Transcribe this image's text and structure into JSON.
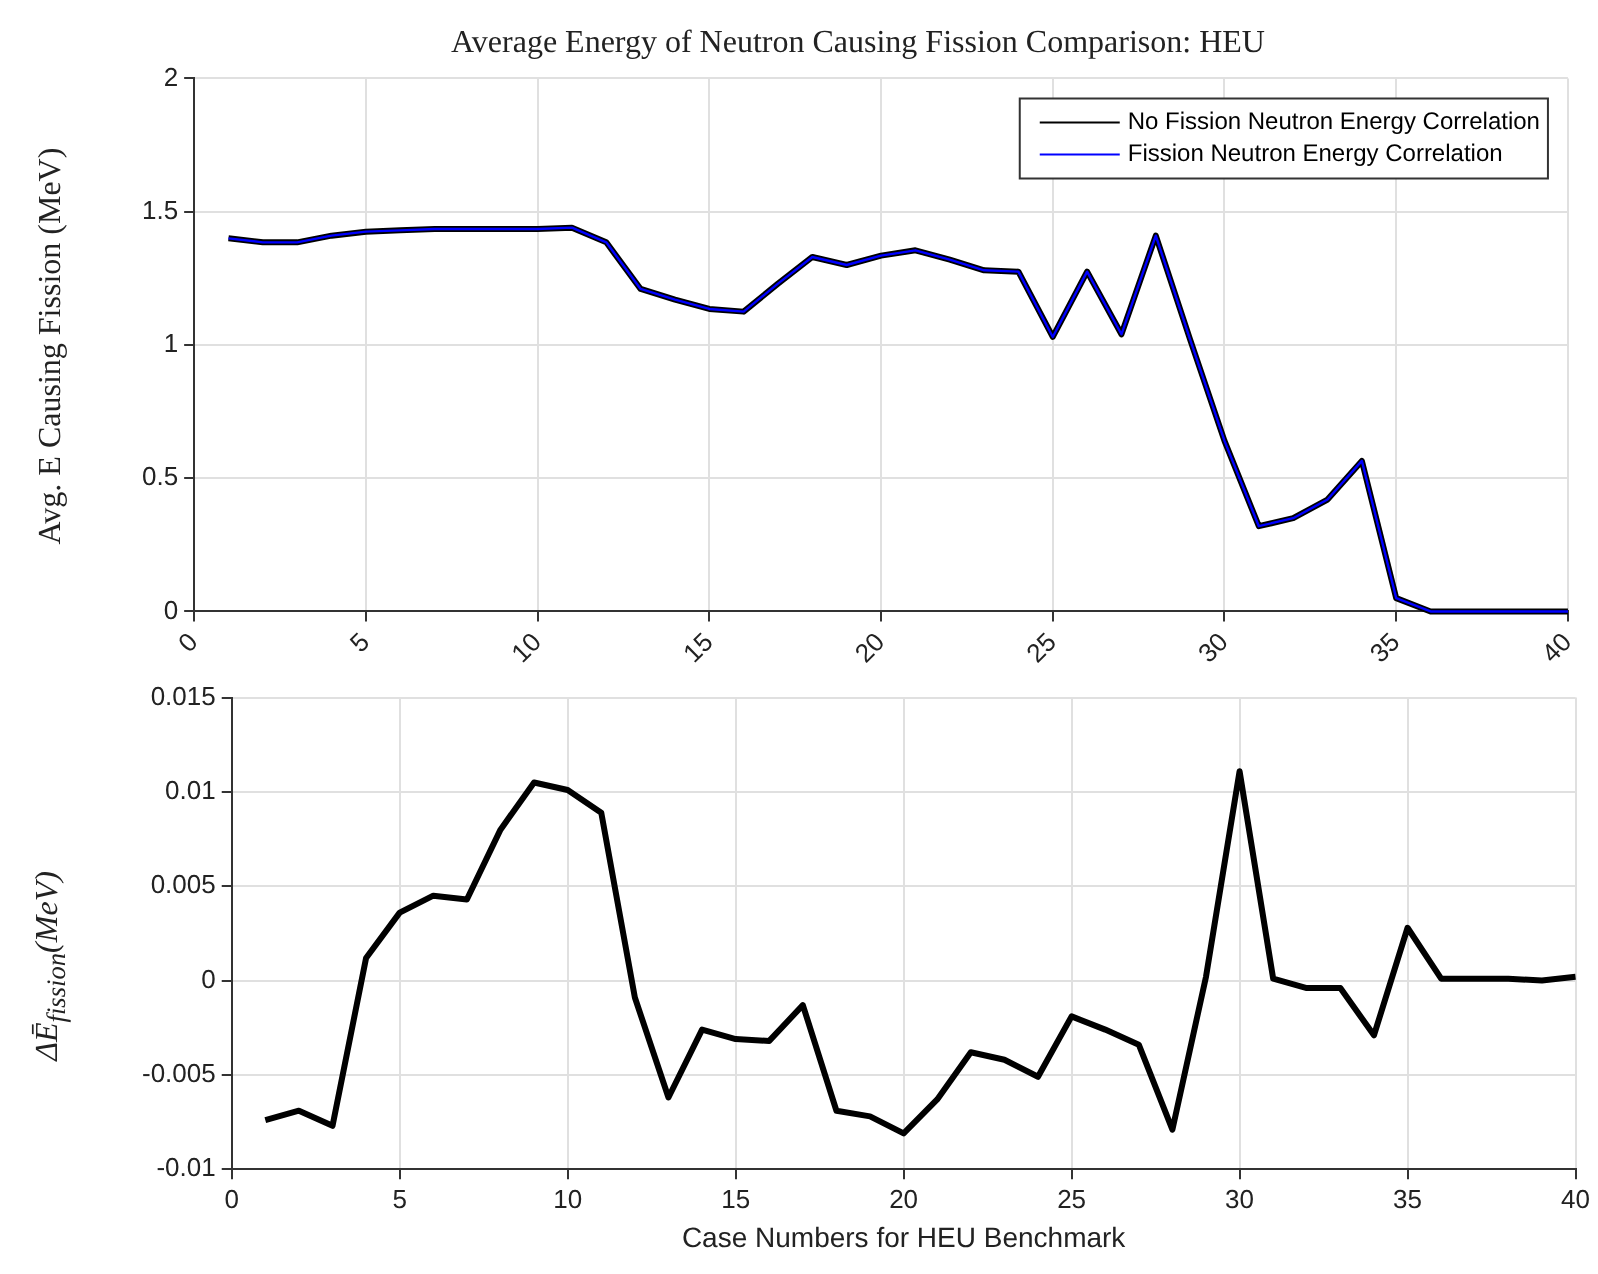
{
  "chart_data": [
    {
      "type": "line",
      "title": "Average Energy of Neutron Causing Fission Comparison: HEU",
      "ylabel": "Avg. E Causing Fission (MeV)",
      "x": [
        1,
        2,
        3,
        4,
        5,
        6,
        7,
        8,
        9,
        10,
        11,
        12,
        13,
        14,
        15,
        16,
        17,
        18,
        19,
        20,
        21,
        22,
        23,
        24,
        25,
        26,
        27,
        28,
        29,
        30,
        31,
        32,
        33,
        34,
        35,
        36,
        37,
        38,
        39,
        40
      ],
      "series": [
        {
          "name": "No Fission Neutron Energy Correlation",
          "color": "#000000",
          "values": [
            1.4,
            1.385,
            1.385,
            1.41,
            1.425,
            1.43,
            1.435,
            1.435,
            1.435,
            1.435,
            1.44,
            1.385,
            1.21,
            1.17,
            1.135,
            1.125,
            1.23,
            1.33,
            1.3,
            1.335,
            1.355,
            1.32,
            1.28,
            1.275,
            1.03,
            1.275,
            1.04,
            1.41,
            1.02,
            0.64,
            0.32,
            0.35,
            0.42,
            0.565,
            0.05,
            0,
            0,
            0,
            0,
            0
          ]
        },
        {
          "name": "Fission Neutron Energy Correlation",
          "color": "#0000ff",
          "values": [
            1.4,
            1.385,
            1.385,
            1.41,
            1.425,
            1.43,
            1.435,
            1.435,
            1.435,
            1.435,
            1.44,
            1.385,
            1.21,
            1.17,
            1.135,
            1.125,
            1.23,
            1.33,
            1.3,
            1.335,
            1.355,
            1.32,
            1.28,
            1.275,
            1.03,
            1.275,
            1.04,
            1.41,
            1.02,
            0.64,
            0.32,
            0.35,
            0.42,
            0.565,
            0.05,
            0,
            0,
            0,
            0,
            0
          ]
        }
      ],
      "xlim": [
        0,
        40
      ],
      "xticks": [
        0,
        5,
        10,
        15,
        20,
        25,
        30,
        35,
        40
      ],
      "ylim": [
        0,
        2
      ],
      "yticks": [
        0,
        0.5,
        1,
        1.5,
        2
      ],
      "grid": true,
      "legend": "top right"
    },
    {
      "type": "line",
      "ylabel": "ΔĒ$_{fission}$(MeV)",
      "xlabel": "Case Numbers for HEU Benchmark",
      "x": [
        1,
        2,
        3,
        4,
        5,
        6,
        7,
        8,
        9,
        10,
        11,
        12,
        13,
        14,
        15,
        16,
        17,
        18,
        19,
        20,
        21,
        22,
        23,
        24,
        25,
        26,
        27,
        28,
        29,
        30,
        31,
        32,
        33,
        34,
        35,
        36,
        37,
        38,
        39,
        40
      ],
      "series": [
        {
          "color": "#000000",
          "values": [
            -0.0074,
            -0.0069,
            -0.0077,
            0.0012,
            0.0036,
            0.0045,
            0.0043,
            0.008,
            0.0105,
            0.0101,
            0.0089,
            -0.0009,
            -0.0062,
            -0.0026,
            -0.0031,
            -0.0032,
            -0.0013,
            -0.0069,
            -0.0072,
            -0.0081,
            -0.0063,
            -0.0038,
            -0.0042,
            -0.0051,
            -0.0019,
            -0.0026,
            -0.0034,
            -0.0079,
            0.0002,
            0.0111,
            0.0001,
            -0.0004,
            -0.0004,
            -0.0029,
            0.0028,
            0.0001,
            0.0001,
            0.0001,
            0,
            0.0002
          ]
        }
      ],
      "xlim": [
        0,
        40
      ],
      "xticks": [
        0,
        5,
        10,
        15,
        20,
        25,
        30,
        35,
        40
      ],
      "ylim": [
        -0.01,
        0.015
      ],
      "yticks": [
        -0.01,
        -0.005,
        0,
        0.005,
        0.01,
        0.015
      ],
      "grid": true
    }
  ]
}
